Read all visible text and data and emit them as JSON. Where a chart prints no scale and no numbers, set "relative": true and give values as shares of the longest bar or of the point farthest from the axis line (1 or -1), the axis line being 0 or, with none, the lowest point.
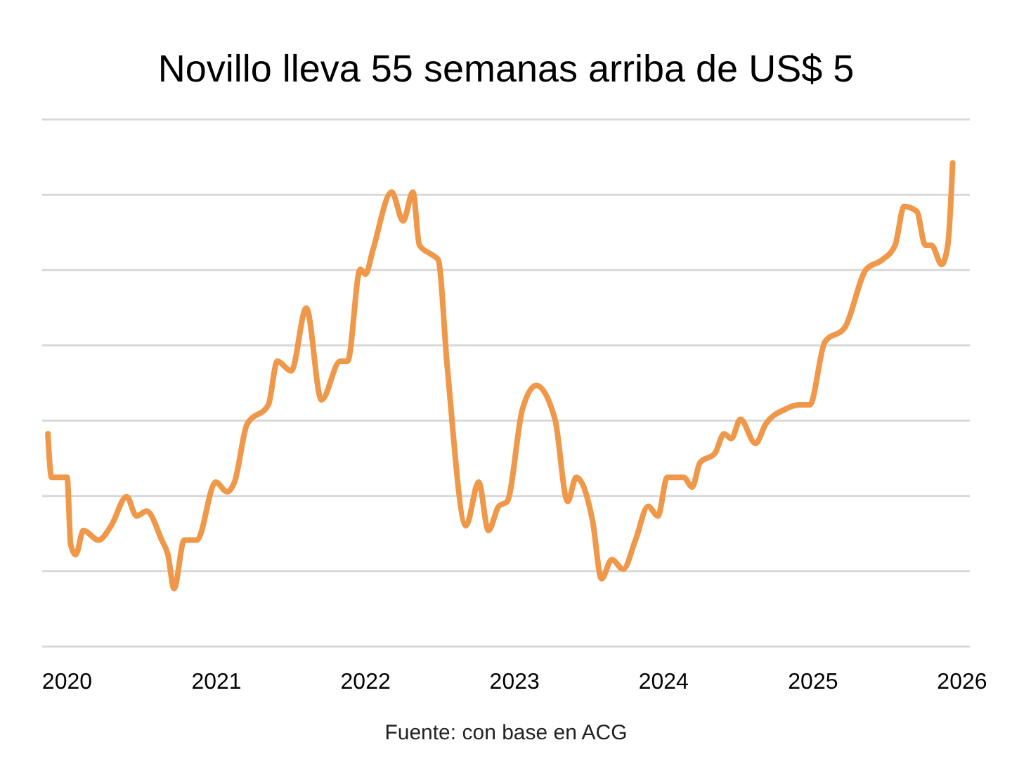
{
  "chart_data": {
    "type": "line",
    "title": "Novillo lleva 55 semanas arriba de US$ 5",
    "relative": true,
    "grid": "y",
    "line_style": "solid",
    "annotations": [
      "Fuente: con base en ACG"
    ],
    "xlim": [
      "2019-11-01",
      "2026-01-20"
    ],
    "xticks": [
      "2020",
      "2021",
      "2022",
      "2023",
      "2024",
      "2025",
      "2026"
    ],
    "x": [
      "2019-11-15",
      "2019-11-24",
      "2019-12-16",
      "2020-01-01",
      "2020-01-10",
      "2020-01-22",
      "2020-02-10",
      "2020-03-18",
      "2020-04-18",
      "2020-05-26",
      "2020-06-19",
      "2020-07-14",
      "2020-08-20",
      "2020-09-04",
      "2020-09-19",
      "2020-10-14",
      "2020-11-14",
      "2020-12-30",
      "2021-01-27",
      "2021-02-14",
      "2021-03-17",
      "2021-05-08",
      "2021-05-30",
      "2021-07-03",
      "2021-08-09",
      "2021-09-15",
      "2021-10-31",
      "2021-11-18",
      "2021-12-19",
      "2022-01-01",
      "2022-01-19",
      "2022-03-06",
      "2022-04-03",
      "2022-04-27",
      "2022-05-13",
      "2022-06-13",
      "2022-06-28",
      "2022-07-20",
      "2022-09-04",
      "2022-10-05",
      "2022-10-29",
      "2022-11-23",
      "2022-12-14",
      "2023-01-20",
      "2023-02-23",
      "2023-04-10",
      "2023-05-11",
      "2023-06-01",
      "2023-07-11",
      "2023-08-02",
      "2023-08-27",
      "2023-09-24",
      "2023-10-24",
      "2023-11-24",
      "2023-12-18",
      "2024-01-10",
      "2024-02-19",
      "2024-03-11",
      "2024-03-30",
      "2024-05-06",
      "2024-05-28",
      "2024-06-15",
      "2024-07-07",
      "2024-08-13",
      "2024-09-07",
      "2024-10-23",
      "2024-11-29",
      "2024-12-24",
      "2025-01-30",
      "2025-03-20",
      "2025-05-11",
      "2025-06-20",
      "2025-07-21",
      "2025-08-12",
      "2025-09-12",
      "2025-10-03",
      "2025-10-18",
      "2025-11-12",
      "2025-11-27",
      "2025-12-09"
    ],
    "series": [
      {
        "color": "#f0984a",
        "values": [
          0.44,
          0.35,
          0.35,
          0.35,
          0.21,
          0.19,
          0.24,
          0.22,
          0.25,
          0.31,
          0.27,
          0.28,
          0.22,
          0.19,
          0.12,
          0.22,
          0.22,
          0.34,
          0.32,
          0.34,
          0.46,
          0.5,
          0.59,
          0.57,
          0.7,
          0.51,
          0.59,
          0.59,
          0.78,
          0.77,
          0.82,
          0.94,
          0.88,
          0.94,
          0.83,
          0.81,
          0.8,
          0.58,
          0.25,
          0.34,
          0.24,
          0.29,
          0.3,
          0.49,
          0.54,
          0.47,
          0.3,
          0.35,
          0.26,
          0.14,
          0.18,
          0.16,
          0.22,
          0.29,
          0.27,
          0.35,
          0.35,
          0.33,
          0.38,
          0.4,
          0.44,
          0.43,
          0.47,
          0.42,
          0.46,
          0.49,
          0.5,
          0.5,
          0.63,
          0.66,
          0.78,
          0.8,
          0.83,
          0.91,
          0.9,
          0.83,
          0.83,
          0.79,
          0.83,
          1.0
        ]
      }
    ]
  }
}
